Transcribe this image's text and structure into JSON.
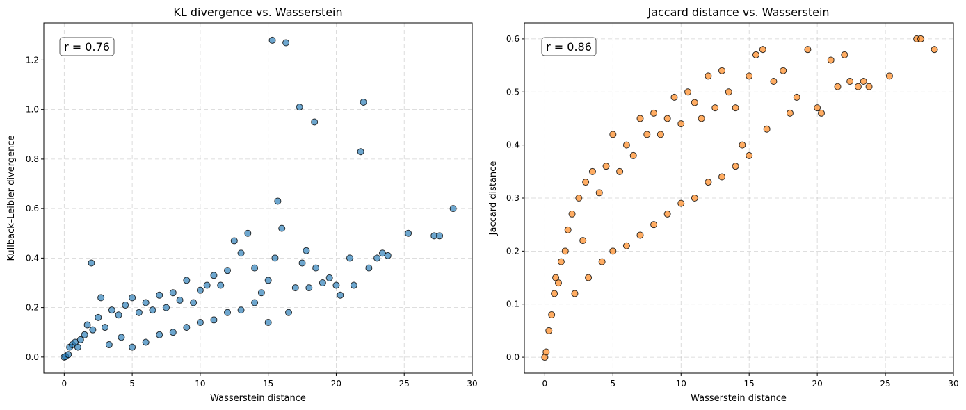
{
  "chart_data": [
    {
      "type": "scatter",
      "title": "KL divergence vs. Wasserstein",
      "xlabel": "Wasserstein distance",
      "ylabel": "Kullback–Leibler divergence",
      "xlim": [
        -1.5,
        30
      ],
      "ylim": [
        -0.065,
        1.35
      ],
      "xticks": [
        0,
        5,
        10,
        15,
        20,
        25,
        30
      ],
      "yticks": [
        0.0,
        0.2,
        0.4,
        0.6,
        0.8,
        1.0,
        1.2
      ],
      "xtick_labels": [
        "0",
        "5",
        "10",
        "15",
        "20",
        "25",
        "30"
      ],
      "ytick_labels": [
        "0.0",
        "0.2",
        "0.4",
        "0.6",
        "0.8",
        "1.0",
        "1.2"
      ],
      "grid": true,
      "annotation": "r = 0.76",
      "color": "#1f77b4",
      "points": [
        [
          0,
          0
        ],
        [
          0.1,
          0.002
        ],
        [
          0.3,
          0.01
        ],
        [
          0.4,
          0.04
        ],
        [
          0.6,
          0.05
        ],
        [
          0.8,
          0.06
        ],
        [
          1.0,
          0.04
        ],
        [
          1.2,
          0.07
        ],
        [
          1.5,
          0.09
        ],
        [
          1.7,
          0.13
        ],
        [
          2.0,
          0.38
        ],
        [
          2.1,
          0.11
        ],
        [
          2.5,
          0.16
        ],
        [
          2.7,
          0.24
        ],
        [
          3.0,
          0.12
        ],
        [
          3.3,
          0.05
        ],
        [
          3.5,
          0.19
        ],
        [
          4.0,
          0.17
        ],
        [
          4.2,
          0.08
        ],
        [
          4.5,
          0.21
        ],
        [
          5.0,
          0.24
        ],
        [
          5.0,
          0.04
        ],
        [
          5.5,
          0.18
        ],
        [
          6.0,
          0.22
        ],
        [
          6.0,
          0.06
        ],
        [
          6.5,
          0.19
        ],
        [
          7.0,
          0.25
        ],
        [
          7.0,
          0.09
        ],
        [
          7.5,
          0.2
        ],
        [
          8.0,
          0.26
        ],
        [
          8.0,
          0.1
        ],
        [
          8.5,
          0.23
        ],
        [
          9.0,
          0.31
        ],
        [
          9.0,
          0.12
        ],
        [
          9.5,
          0.22
        ],
        [
          10.0,
          0.27
        ],
        [
          10.0,
          0.14
        ],
        [
          10.5,
          0.29
        ],
        [
          11.0,
          0.33
        ],
        [
          11.0,
          0.15
        ],
        [
          11.5,
          0.29
        ],
        [
          12.0,
          0.35
        ],
        [
          12.0,
          0.18
        ],
        [
          12.5,
          0.47
        ],
        [
          13.0,
          0.42
        ],
        [
          13.0,
          0.19
        ],
        [
          13.5,
          0.5
        ],
        [
          14.0,
          0.36
        ],
        [
          14.0,
          0.22
        ],
        [
          14.5,
          0.26
        ],
        [
          15.0,
          0.31
        ],
        [
          15.0,
          0.14
        ],
        [
          15.3,
          1.28
        ],
        [
          15.5,
          0.4
        ],
        [
          15.7,
          0.63
        ],
        [
          16.0,
          0.52
        ],
        [
          16.3,
          1.27
        ],
        [
          16.5,
          0.18
        ],
        [
          17.0,
          0.28
        ],
        [
          17.3,
          1.01
        ],
        [
          17.5,
          0.38
        ],
        [
          17.8,
          0.43
        ],
        [
          18.0,
          0.28
        ],
        [
          18.4,
          0.95
        ],
        [
          18.5,
          0.36
        ],
        [
          19.0,
          0.3
        ],
        [
          19.5,
          0.32
        ],
        [
          20.0,
          0.29
        ],
        [
          20.3,
          0.25
        ],
        [
          21.0,
          0.4
        ],
        [
          21.3,
          0.29
        ],
        [
          21.8,
          0.83
        ],
        [
          22.0,
          1.03
        ],
        [
          22.4,
          0.36
        ],
        [
          23.0,
          0.4
        ],
        [
          23.4,
          0.42
        ],
        [
          23.8,
          0.41
        ],
        [
          25.3,
          0.5
        ],
        [
          27.2,
          0.49
        ],
        [
          27.6,
          0.49
        ],
        [
          28.6,
          0.6
        ]
      ]
    },
    {
      "type": "scatter",
      "title": "Jaccard distance vs. Wasserstein",
      "xlabel": "Wasserstein distance",
      "ylabel": "Jaccard distance",
      "xlim": [
        -1.5,
        30
      ],
      "ylim": [
        -0.03,
        0.63
      ],
      "xticks": [
        0,
        5,
        10,
        15,
        20,
        25,
        30
      ],
      "yticks": [
        0.0,
        0.1,
        0.2,
        0.3,
        0.4,
        0.5,
        0.6
      ],
      "xtick_labels": [
        "0",
        "5",
        "10",
        "15",
        "20",
        "25",
        "30"
      ],
      "ytick_labels": [
        "0.0",
        "0.1",
        "0.2",
        "0.3",
        "0.4",
        "0.5",
        "0.6"
      ],
      "grid": true,
      "annotation": "r = 0.86",
      "color": "#ff7f0e",
      "points": [
        [
          0,
          0
        ],
        [
          0.1,
          0.01
        ],
        [
          0.3,
          0.05
        ],
        [
          0.5,
          0.08
        ],
        [
          0.7,
          0.12
        ],
        [
          0.8,
          0.15
        ],
        [
          1.0,
          0.14
        ],
        [
          1.2,
          0.18
        ],
        [
          1.5,
          0.2
        ],
        [
          1.7,
          0.24
        ],
        [
          2.0,
          0.27
        ],
        [
          2.2,
          0.12
        ],
        [
          2.5,
          0.3
        ],
        [
          2.8,
          0.22
        ],
        [
          3.0,
          0.33
        ],
        [
          3.2,
          0.15
        ],
        [
          3.5,
          0.35
        ],
        [
          4.0,
          0.31
        ],
        [
          4.2,
          0.18
        ],
        [
          4.5,
          0.36
        ],
        [
          5.0,
          0.42
        ],
        [
          5.0,
          0.2
        ],
        [
          5.5,
          0.35
        ],
        [
          6.0,
          0.4
        ],
        [
          6.0,
          0.21
        ],
        [
          6.5,
          0.38
        ],
        [
          7.0,
          0.45
        ],
        [
          7.0,
          0.23
        ],
        [
          7.5,
          0.42
        ],
        [
          8.0,
          0.46
        ],
        [
          8.0,
          0.25
        ],
        [
          8.5,
          0.42
        ],
        [
          9.0,
          0.45
        ],
        [
          9.0,
          0.27
        ],
        [
          9.5,
          0.49
        ],
        [
          10.0,
          0.44
        ],
        [
          10.0,
          0.29
        ],
        [
          10.5,
          0.5
        ],
        [
          11.0,
          0.48
        ],
        [
          11.0,
          0.3
        ],
        [
          11.5,
          0.45
        ],
        [
          12.0,
          0.53
        ],
        [
          12.0,
          0.33
        ],
        [
          12.5,
          0.47
        ],
        [
          13.0,
          0.54
        ],
        [
          13.0,
          0.34
        ],
        [
          13.5,
          0.5
        ],
        [
          14.0,
          0.47
        ],
        [
          14.0,
          0.36
        ],
        [
          14.5,
          0.4
        ],
        [
          15.0,
          0.53
        ],
        [
          15.0,
          0.38
        ],
        [
          15.5,
          0.57
        ],
        [
          16.0,
          0.58
        ],
        [
          16.3,
          0.43
        ],
        [
          16.8,
          0.52
        ],
        [
          17.5,
          0.54
        ],
        [
          18.0,
          0.46
        ],
        [
          18.5,
          0.49
        ],
        [
          19.3,
          0.58
        ],
        [
          20.0,
          0.47
        ],
        [
          20.3,
          0.46
        ],
        [
          21.0,
          0.56
        ],
        [
          21.5,
          0.51
        ],
        [
          22.0,
          0.57
        ],
        [
          22.4,
          0.52
        ],
        [
          23.0,
          0.51
        ],
        [
          23.4,
          0.52
        ],
        [
          23.8,
          0.51
        ],
        [
          25.3,
          0.53
        ],
        [
          27.3,
          0.6
        ],
        [
          27.6,
          0.6
        ],
        [
          28.6,
          0.58
        ]
      ]
    }
  ]
}
